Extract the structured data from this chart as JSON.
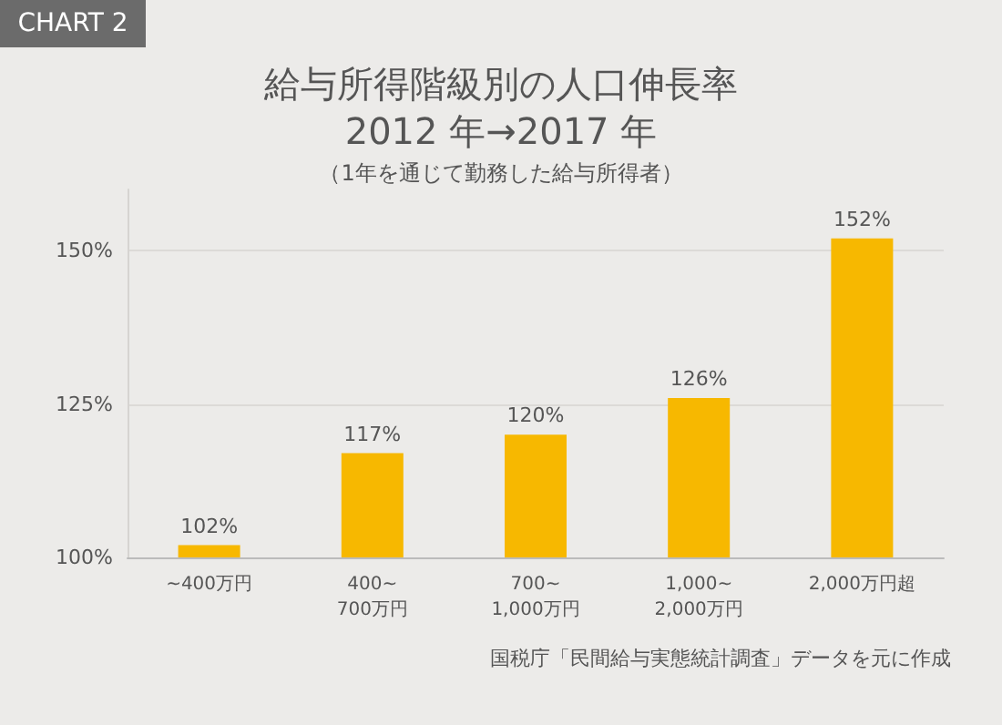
{
  "chart_data": {
    "type": "bar",
    "title": "給与所得階級別の人口伸長率\n2012 年→2017 年",
    "subtitle": "（1年を通じて勤務した給与所得者）",
    "annotations": [
      "CHART 2",
      "国税庁「民間給与実態統計調査」データを元に作成"
    ],
    "categories": [
      "~400万円",
      "400~\n700万円",
      "700~\n1,000万円",
      "1,000~\n2,000万円",
      "2,000万円超"
    ],
    "values": [
      102,
      117,
      120,
      126,
      152
    ],
    "color": "#f7b800",
    "value_labels": [
      "102%",
      "117%",
      "120%",
      "126%",
      "152%"
    ],
    "ylim": [
      100,
      160
    ],
    "yticks": [
      {
        "value": 100,
        "label": "100%"
      },
      {
        "value": 125,
        "label": "125%"
      },
      {
        "value": 150,
        "label": "150%"
      }
    ],
    "grid": "y"
  }
}
